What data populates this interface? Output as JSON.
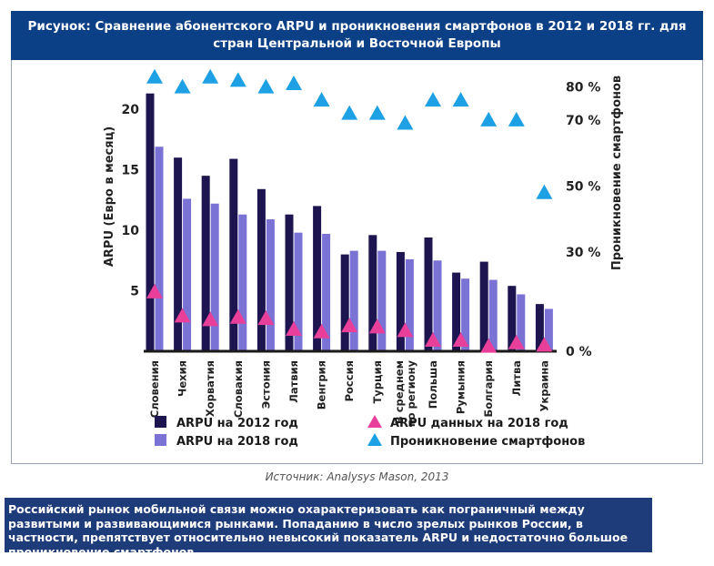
{
  "title_lines": [
    "Рисунок: Сравнение абонентского ARPU и проникновения смартфонов в 2012 и 2018 гг. для",
    "стран Центральной и Восточной Европы"
  ],
  "source": "Источник: Analysys Mason, 2013",
  "note": "Российский рынок мобильной связи можно охарактеризовать как пограничный между развитыми и развивающимися рынками. Попаданию в число зрелых рынков России, в частности, препятствует относительно невысокий показатель ARPU и недостаточно большое проникновение смартфонов.",
  "colors": {
    "title_bg": "#0b3f86",
    "bar_2012": "#1c1550",
    "bar_2018": "#7b72d6",
    "marker_arpu_2018": "#e8409a",
    "marker_penetration": "#1ea0e4",
    "note_bg": "#1e3c7a"
  },
  "chart_data": {
    "type": "bar",
    "categories": [
      "Словения",
      "Чехия",
      "Хорватия",
      "Словакия",
      "Эстония",
      "Латвия",
      "Венгрия",
      "Россия",
      "Турция",
      "В среднем по региону",
      "Польша",
      "Румыния",
      "Болгария",
      "Литва",
      "Украина"
    ],
    "category_label_lines": [
      [
        "Словения"
      ],
      [
        "Чехия"
      ],
      [
        "Хорватия"
      ],
      [
        "Словакия"
      ],
      [
        "Эстония"
      ],
      [
        "Латвия"
      ],
      [
        "Венгрия"
      ],
      [
        "Россия"
      ],
      [
        "Турция"
      ],
      [
        "В среднем",
        "по региону"
      ],
      [
        "Польша"
      ],
      [
        "Румыния"
      ],
      [
        "Болгария"
      ],
      [
        "Литва"
      ],
      [
        "Украина"
      ]
    ],
    "series": [
      {
        "name": "ARPU на 2012 год",
        "kind": "bar",
        "axis": "left",
        "values": [
          21.3,
          16.0,
          14.5,
          15.9,
          13.4,
          11.3,
          12.0,
          8.0,
          9.6,
          8.2,
          9.4,
          6.5,
          7.4,
          5.4,
          3.9
        ]
      },
      {
        "name": "ARPU на 2018 год",
        "kind": "bar",
        "axis": "left",
        "values": [
          16.9,
          12.6,
          12.2,
          11.3,
          10.9,
          9.8,
          9.7,
          8.3,
          8.3,
          7.6,
          7.5,
          6.0,
          5.9,
          4.7,
          3.5
        ]
      },
      {
        "name": "ARPU данных на 2018 год",
        "kind": "marker",
        "axis": "left",
        "values": [
          4.9,
          2.9,
          2.6,
          2.8,
          2.7,
          1.8,
          1.6,
          2.1,
          2.0,
          1.7,
          0.9,
          0.9,
          0.4,
          0.7,
          0.5
        ]
      },
      {
        "name": "Проникновение смартфонов",
        "kind": "marker",
        "axis": "right",
        "values": [
          83,
          80,
          83,
          82,
          80,
          81,
          76,
          72,
          72,
          69,
          76,
          76,
          70,
          70,
          48
        ]
      }
    ],
    "y_left": {
      "label": "ARPU (Евро в месяц)",
      "ticks": [
        5,
        10,
        15,
        20
      ],
      "range": [
        0,
        22
      ]
    },
    "y_right": {
      "label": "Проникновение смартфонов",
      "ticks": [
        "0 %",
        "30 %",
        "50 %",
        "70 %",
        "80 %"
      ],
      "tick_values": [
        0,
        30,
        50,
        70,
        80
      ],
      "range": [
        0,
        88
      ]
    },
    "legend": [
      {
        "name": "ARPU на 2012 год",
        "marker": "square",
        "color": "#1c1550"
      },
      {
        "name": "ARPU на 2018 год",
        "marker": "square",
        "color": "#7b72d6"
      },
      {
        "name": "ARPU данных на 2018 год",
        "marker": "triangle",
        "color": "#e8409a"
      },
      {
        "name": "Проникновение смартфонов",
        "marker": "triangle",
        "color": "#1ea0e4"
      }
    ],
    "legend_position": "bottom",
    "grid": false
  }
}
